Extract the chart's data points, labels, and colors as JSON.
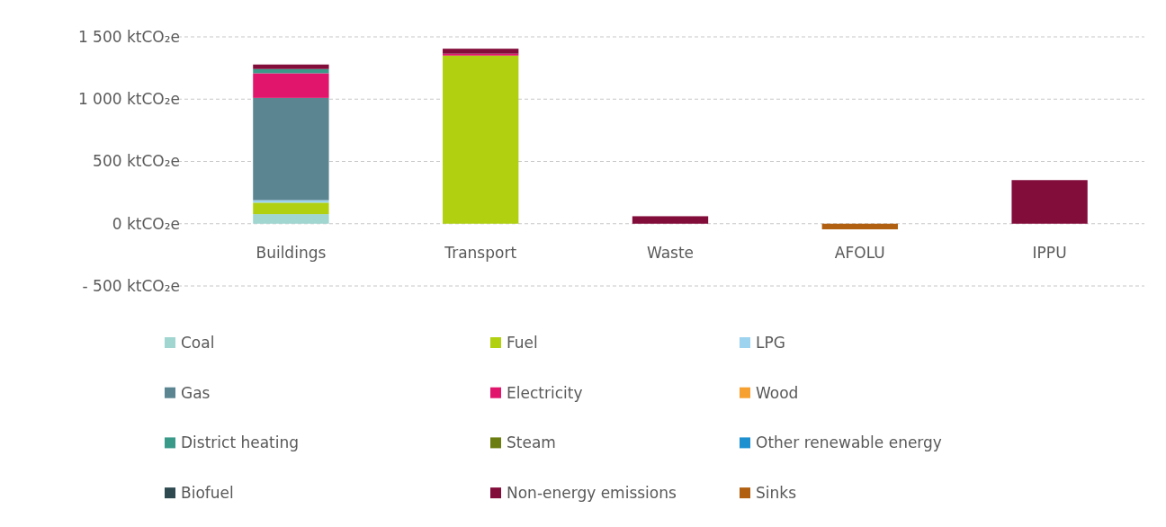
{
  "chart_data": {
    "type": "bar",
    "stacked": true,
    "categories": [
      "Buildings",
      "Transport",
      "Waste",
      "AFOLU",
      "IPPU"
    ],
    "ylim": [
      -500,
      1500
    ],
    "yticks": [
      {
        "value": -500,
        "label": "- 500 ktCO₂e"
      },
      {
        "value": 0,
        "label": "0 ktCO₂e"
      },
      {
        "value": 500,
        "label": "500 ktCO₂e"
      },
      {
        "value": 1000,
        "label": "1 000 ktCO₂e"
      },
      {
        "value": 1500,
        "label": "1 500 ktCO₂e"
      }
    ],
    "grid": "y",
    "legend": "bottom",
    "series": [
      {
        "name": "Coal",
        "color": "#a0d5d0",
        "values": [
          77,
          null,
          null,
          null,
          null
        ]
      },
      {
        "name": "Fuel",
        "color": "#b0d010",
        "values": [
          92,
          1350,
          null,
          null,
          null
        ]
      },
      {
        "name": "LPG",
        "color": "#9dd3ee",
        "values": [
          20,
          null,
          null,
          null,
          null
        ]
      },
      {
        "name": "Gas",
        "color": "#5b8591",
        "values": [
          821,
          null,
          null,
          null,
          null
        ]
      },
      {
        "name": "Electricity",
        "color": "#e0156b",
        "values": [
          198,
          15,
          null,
          null,
          null
        ]
      },
      {
        "name": "Wood",
        "color": "#f5a030",
        "values": [
          null,
          null,
          null,
          null,
          null
        ]
      },
      {
        "name": "District heating",
        "color": "#3a9a8a",
        "values": [
          34,
          null,
          null,
          null,
          null
        ]
      },
      {
        "name": "Steam",
        "color": "#6b7d10",
        "values": [
          null,
          null,
          null,
          null,
          null
        ]
      },
      {
        "name": "Other renewable energy",
        "color": "#1e90d0",
        "values": [
          null,
          null,
          null,
          null,
          null
        ]
      },
      {
        "name": "Biofuel",
        "color": "#2e4a50",
        "values": [
          null,
          null,
          null,
          null,
          null
        ]
      },
      {
        "name": "Non-energy emissions",
        "color": "#820c3a",
        "values": [
          36,
          40,
          60,
          null,
          350
        ]
      },
      {
        "name": "Sinks",
        "color": "#b06010",
        "values": [
          null,
          null,
          null,
          -45,
          null
        ]
      }
    ]
  }
}
